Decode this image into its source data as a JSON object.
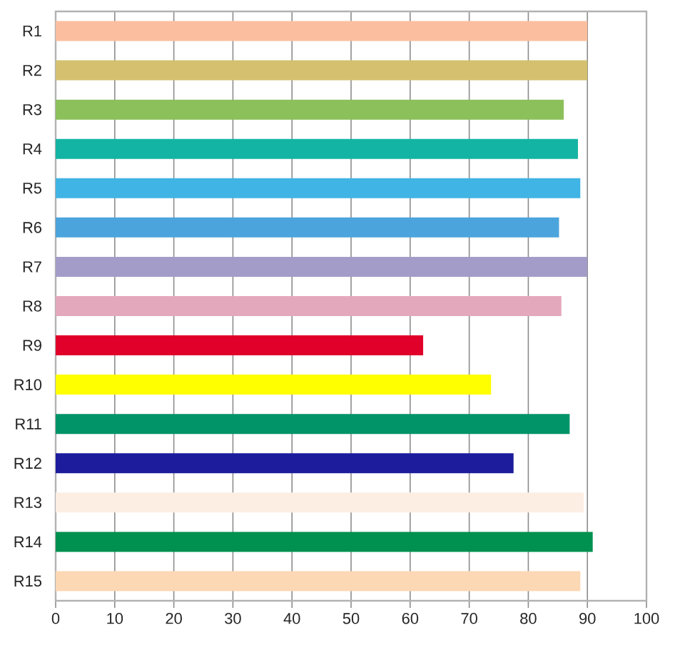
{
  "chart_data": {
    "type": "bar",
    "orientation": "horizontal",
    "categories": [
      "R1",
      "R2",
      "R3",
      "R4",
      "R5",
      "R6",
      "R7",
      "R8",
      "R9",
      "R10",
      "R11",
      "R12",
      "R13",
      "R14",
      "R15"
    ],
    "values": [
      90,
      90,
      86,
      88.4,
      88.8,
      85.2,
      90,
      85.6,
      62.2,
      73.7,
      87,
      77.5,
      89.4,
      90.9,
      88.8
    ],
    "colors": [
      "#fbbf9f",
      "#d4c06e",
      "#8cc05a",
      "#14b4a4",
      "#40b4e4",
      "#4ca4dc",
      "#a49cc8",
      "#e4a8bc",
      "#e0002a",
      "#ffff00",
      "#009468",
      "#1c1c9c",
      "#fdeee4",
      "#009050",
      "#fdd8b4"
    ],
    "xlim": [
      0,
      100
    ],
    "xticks": [
      0,
      10,
      20,
      30,
      40,
      50,
      60,
      70,
      80,
      90,
      100
    ],
    "grid": "x"
  }
}
